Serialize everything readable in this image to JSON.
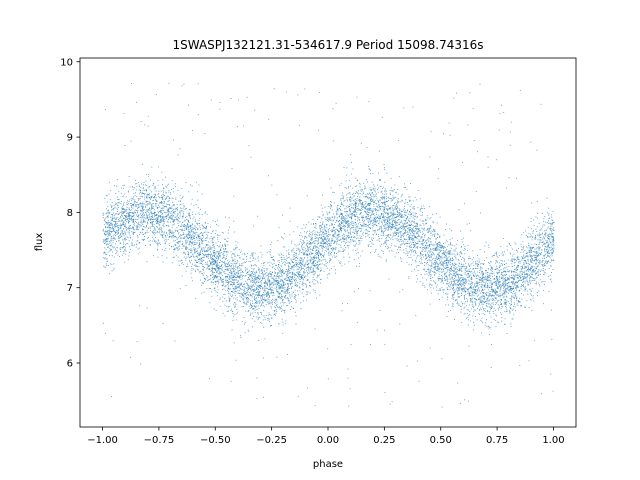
{
  "chart_data": {
    "type": "scatter",
    "title": "1SWASPJ132121.31-534617.9 Period 15098.74316s",
    "xlabel": "phase",
    "ylabel": "flux",
    "xlim": [
      -1.1,
      1.1
    ],
    "ylim": [
      5.15,
      10.05
    ],
    "xticks": [
      -1.0,
      -0.75,
      -0.5,
      -0.25,
      0.0,
      0.25,
      0.5,
      0.75,
      1.0
    ],
    "xtick_labels": [
      "−1.00",
      "−0.75",
      "−0.50",
      "−0.25",
      "0.00",
      "0.25",
      "0.50",
      "0.75",
      "1.00"
    ],
    "yticks": [
      6,
      7,
      8,
      9,
      10
    ],
    "ytick_labels": [
      "6",
      "7",
      "8",
      "9",
      "10"
    ],
    "grid": false,
    "point_color": "#1f77b4",
    "model": {
      "description_of_cloud": "folded light curve, two cycles over phase -1..1",
      "mean_flux": 7.5,
      "amplitude": 0.5,
      "peak_phases": [
        -0.8,
        0.2
      ],
      "trough_phases": [
        -0.3,
        0.7
      ],
      "core_spread": 0.22,
      "outlier_range": [
        5.4,
        9.8
      ]
    }
  }
}
